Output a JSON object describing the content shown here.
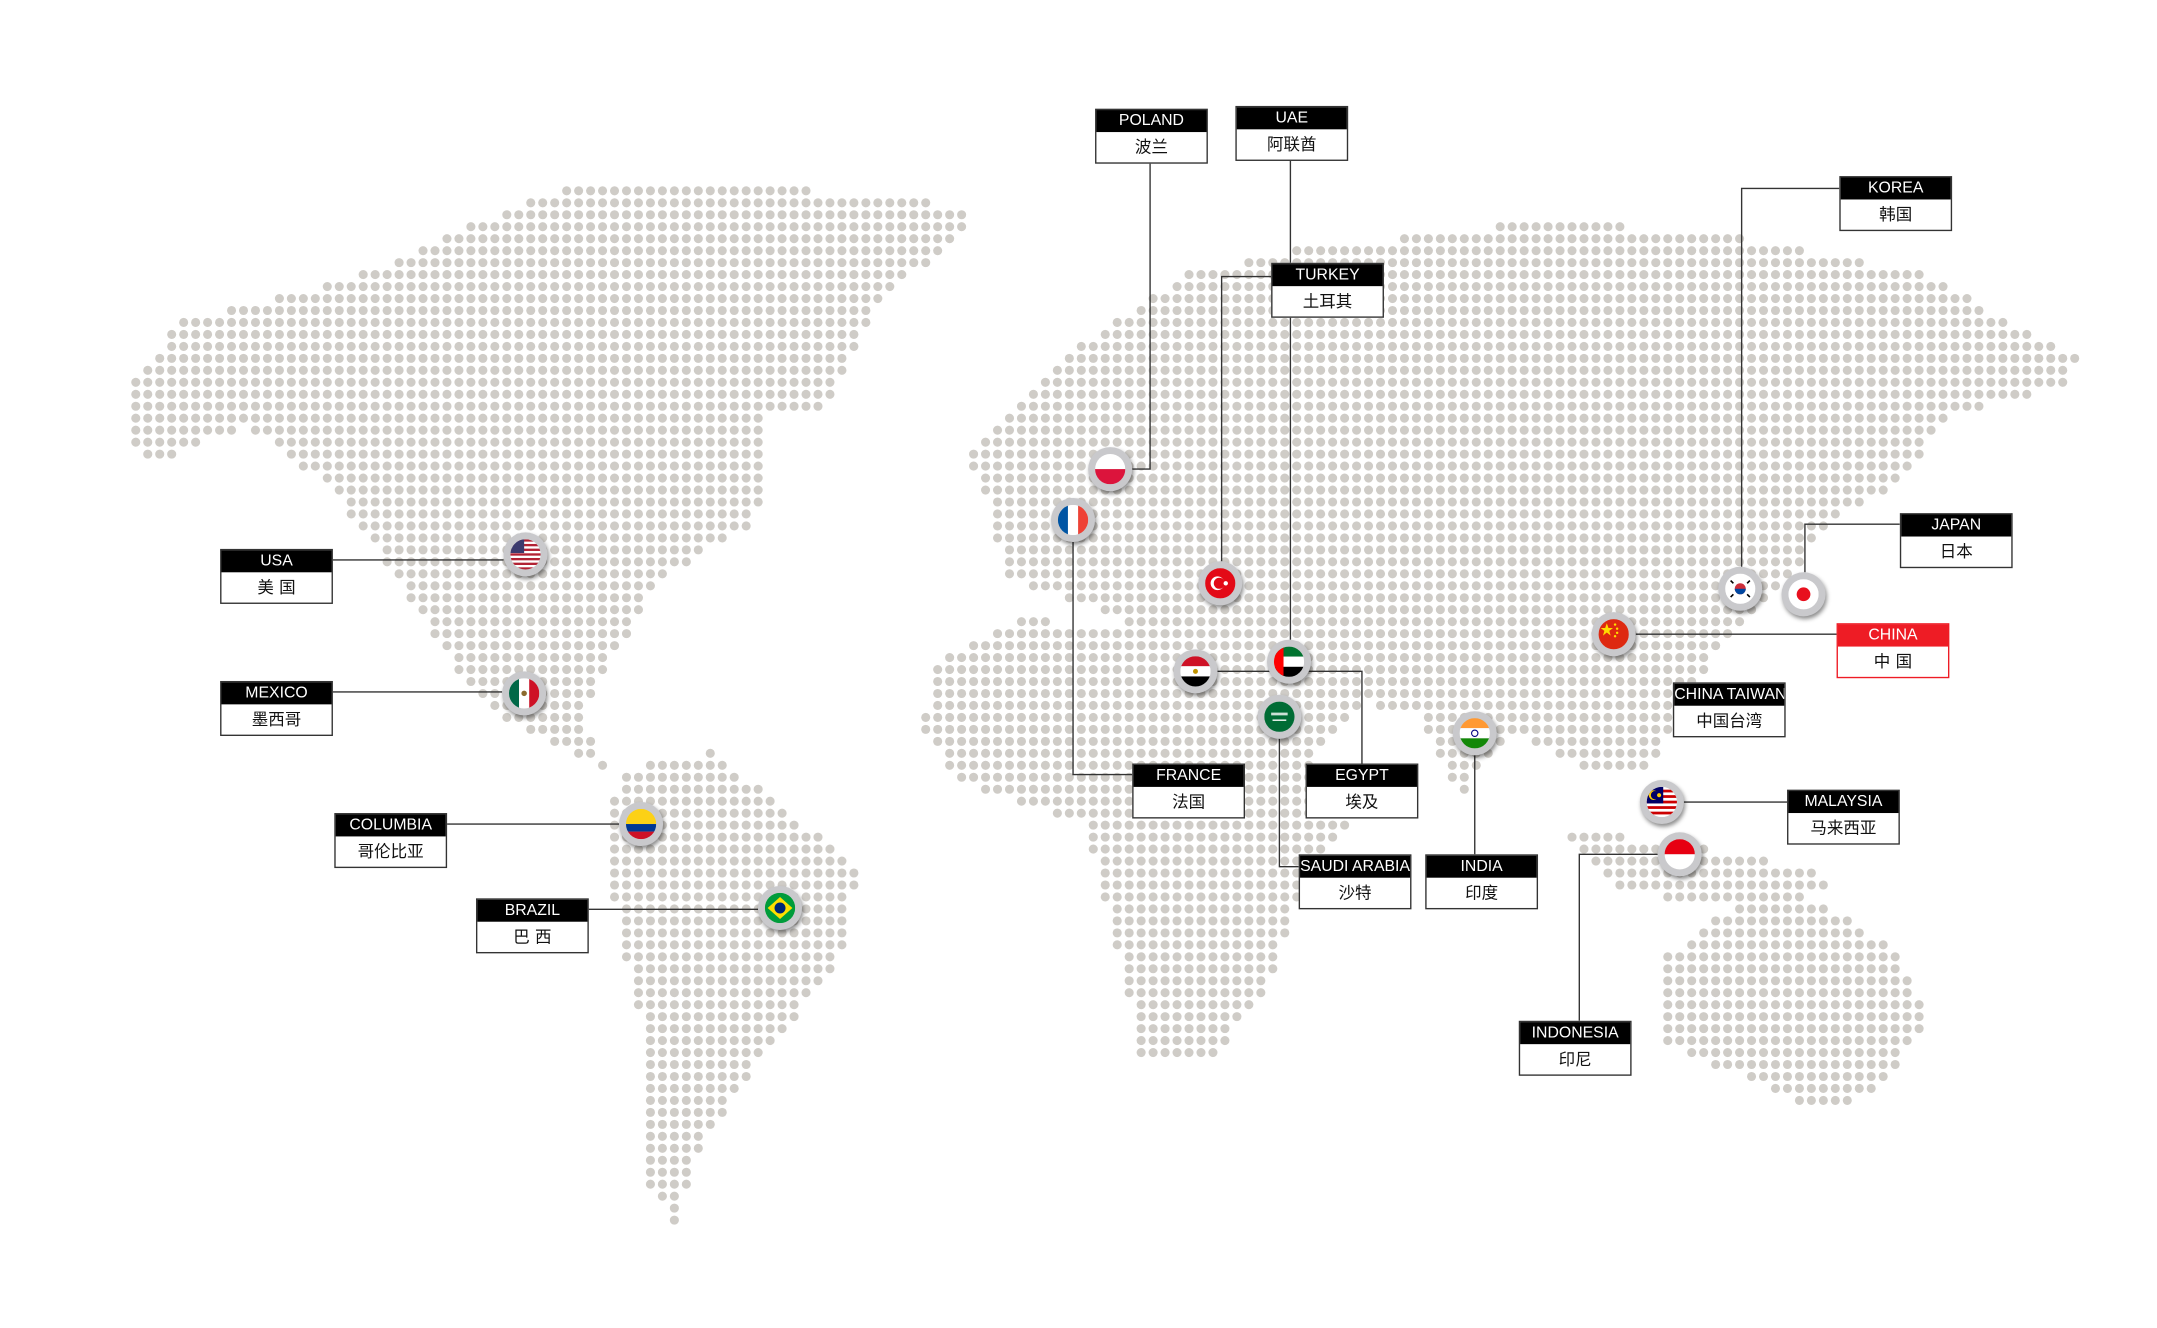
{
  "colors": {
    "dot": "#cfccc7",
    "line": "#333333",
    "label_header": "#000000",
    "highlight": "#ee1c25",
    "flag_ring": "#c9c9cc"
  },
  "locations": [
    {
      "id": "poland",
      "en": "POLAND",
      "zh": "波兰",
      "flag": "poland-flag-icon"
    },
    {
      "id": "uae",
      "en": "UAE",
      "zh": "阿联酋",
      "flag": "uae-flag-icon"
    },
    {
      "id": "turkey",
      "en": "TURKEY",
      "zh": "土耳其",
      "flag": "turkey-flag-icon"
    },
    {
      "id": "korea",
      "en": "KOREA",
      "zh": "韩国",
      "flag": "korea-flag-icon"
    },
    {
      "id": "japan",
      "en": "JAPAN",
      "zh": "日本",
      "flag": "japan-flag-icon"
    },
    {
      "id": "china",
      "en": "CHINA",
      "zh": "中 国",
      "flag": "china-flag-icon",
      "highlight": true
    },
    {
      "id": "china-taiwan",
      "en": "CHINA TAIWAN",
      "zh": "中国台湾"
    },
    {
      "id": "malaysia",
      "en": "MALAYSIA",
      "zh": "马来西亚",
      "flag": "malaysia-flag-icon"
    },
    {
      "id": "indonesia",
      "en": "INDONESIA",
      "zh": "印尼",
      "flag": "indonesia-flag-icon"
    },
    {
      "id": "india",
      "en": "INDIA",
      "zh": "印度",
      "flag": "india-flag-icon"
    },
    {
      "id": "saudi-arabia",
      "en": "SAUDI ARABIA",
      "zh": "沙特",
      "flag": "saudi-arabia-flag-icon"
    },
    {
      "id": "egypt",
      "en": "EGYPT",
      "zh": "埃及",
      "flag": "egypt-flag-icon"
    },
    {
      "id": "france",
      "en": "FRANCE",
      "zh": "法国",
      "flag": "france-flag-icon"
    },
    {
      "id": "usa",
      "en": "USA",
      "zh": "美 国",
      "flag": "usa-flag-icon"
    },
    {
      "id": "mexico",
      "en": "MEXICO",
      "zh": "墨西哥",
      "flag": "mexico-flag-icon"
    },
    {
      "id": "columbia",
      "en": "COLUMBIA",
      "zh": "哥伦比亚",
      "flag": "colombia-flag-icon"
    },
    {
      "id": "brazil",
      "en": "BRAZIL",
      "zh": "巴 西",
      "flag": "brazil-flag-icon"
    }
  ]
}
